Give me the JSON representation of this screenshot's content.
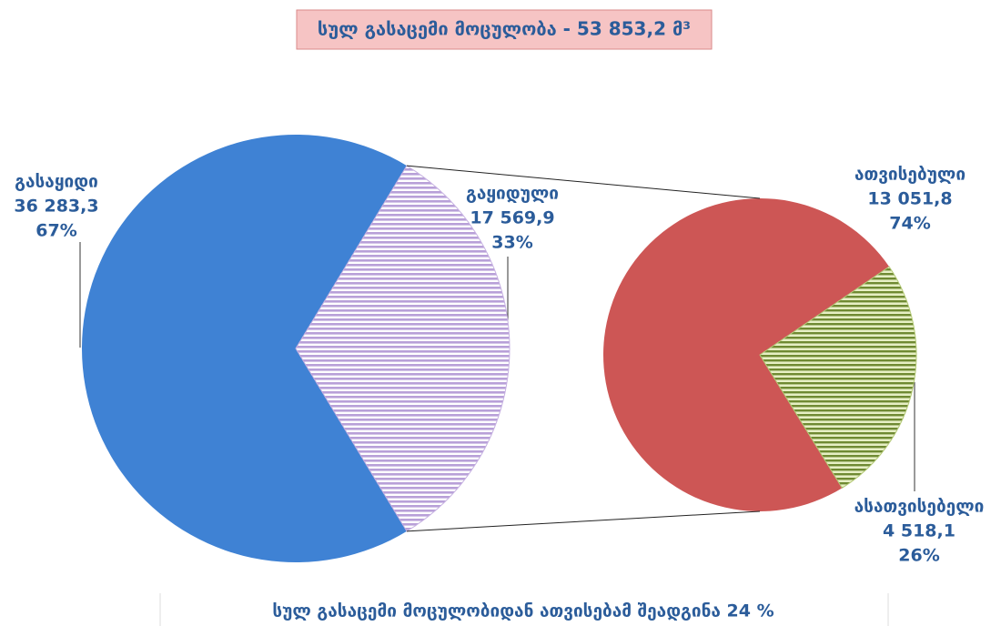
{
  "chart_data": {
    "type": "pie_of_pie",
    "title": "სულ გასაცემი მოცულობა - 53 853,2 მ³",
    "footnote": "სულ გასაცემი მოცულობიდან ათვისებამ შეადგინა 24 %",
    "series": [
      {
        "categories": [
          "გასაყიდი",
          "გაყიდული"
        ],
        "values": [
          36283.3,
          17569.9
        ],
        "value_labels": [
          "36 283,3",
          "17 569,9"
        ],
        "percents": [
          67,
          33
        ],
        "percent_labels": [
          "67%",
          "33%"
        ],
        "colors": [
          "#3f82d4",
          "#c7b2e2"
        ]
      },
      {
        "categories": [
          "ათვისებული",
          "ასათვისებელი"
        ],
        "values": [
          13051.8,
          4518.1
        ],
        "value_labels": [
          "13 051,8",
          "4 518,1"
        ],
        "percents": [
          74,
          26
        ],
        "percent_labels": [
          "74%",
          "26%"
        ],
        "colors": [
          "#cd5655",
          "#b5ca78"
        ]
      }
    ]
  }
}
